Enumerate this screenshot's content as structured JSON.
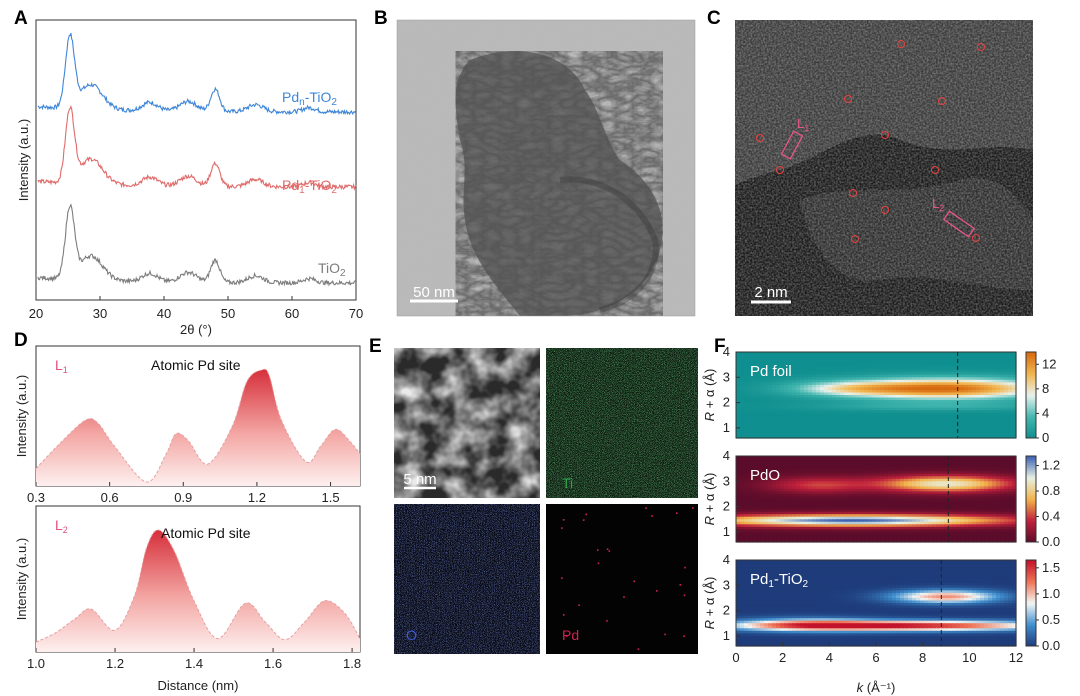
{
  "panels": {
    "a": {
      "label": "A"
    },
    "b": {
      "label": "B",
      "scale_bar": "50 nm"
    },
    "c": {
      "label": "C",
      "scale_bar": "2 nm",
      "lines": [
        "L",
        "L"
      ],
      "line_subs": [
        "1",
        "2"
      ]
    },
    "d": {
      "label": "D"
    },
    "e": {
      "label": "E",
      "scale_bar": "5 nm",
      "maps": [
        "Ti",
        "O",
        "Pd"
      ],
      "map_colors": [
        "#2fa84f",
        "#3b5bd6",
        "#d1224f"
      ]
    },
    "f": {
      "label": "F"
    }
  },
  "chart_data": [
    {
      "type": "line",
      "panel": "A",
      "xlabel": "2θ (°)",
      "ylabel": "Intensity (a.u.)",
      "xlim": [
        20,
        70
      ],
      "xticks": [
        20,
        30,
        40,
        50,
        60,
        70
      ],
      "peaks_2theta": [
        25.3,
        28.5,
        37.8,
        43.8,
        48.0,
        54.5,
        62.7
      ],
      "series": [
        {
          "name": "Pd",
          "sub": "n",
          "tail": "-TiO",
          "tail_sub": "2",
          "color": "#3f86d8"
        },
        {
          "name": "Pd",
          "sub": "1",
          "tail": "-TiO",
          "tail_sub": "2",
          "color": "#e06b6b"
        },
        {
          "name": "TiO",
          "sub": "",
          "tail": "",
          "tail_sub": "2",
          "color": "#7d7d7d"
        }
      ]
    },
    {
      "type": "area",
      "panel": "D-top",
      "label": "L",
      "label_sub": "1",
      "annotation": "Atomic Pd site",
      "ylabel": "Intensity (a.u.)",
      "xlim": [
        0.3,
        1.62
      ],
      "xticks": [
        0.3,
        0.6,
        0.9,
        1.2,
        1.5
      ],
      "x": [
        0.3,
        0.4,
        0.5,
        0.55,
        0.62,
        0.75,
        0.83,
        0.87,
        0.92,
        1.0,
        1.1,
        1.16,
        1.22,
        1.25,
        1.3,
        1.4,
        1.46,
        1.52,
        1.58,
        1.62
      ],
      "y": [
        0.12,
        0.35,
        0.55,
        0.53,
        0.32,
        0.0,
        0.25,
        0.43,
        0.37,
        0.16,
        0.5,
        0.9,
        1.0,
        0.95,
        0.55,
        0.18,
        0.32,
        0.47,
        0.36,
        0.25
      ]
    },
    {
      "type": "area",
      "panel": "D-bottom",
      "label": "L",
      "label_sub": "2",
      "annotation": "Atomic Pd site",
      "ylabel": "Intensity (a.u.)",
      "xlabel": "Distance (nm)",
      "xlim": [
        1.0,
        1.82
      ],
      "xticks": [
        1.0,
        1.2,
        1.4,
        1.6,
        1.8
      ],
      "x": [
        1.0,
        1.05,
        1.1,
        1.14,
        1.2,
        1.25,
        1.28,
        1.31,
        1.35,
        1.4,
        1.46,
        1.53,
        1.58,
        1.63,
        1.68,
        1.73,
        1.78,
        1.82
      ],
      "y": [
        0.05,
        0.13,
        0.25,
        0.33,
        0.15,
        0.45,
        0.85,
        1.0,
        0.82,
        0.4,
        0.08,
        0.38,
        0.22,
        0.07,
        0.22,
        0.4,
        0.3,
        0.08
      ]
    },
    {
      "type": "heatmap",
      "panel": "F",
      "xlabel": "k (Å⁻¹)",
      "xlabel_italic": "k",
      "xlabel_rest": " (Å⁻¹)",
      "ylabel": "R + α (Å)",
      "xlim": [
        0,
        12
      ],
      "xticks": [
        0,
        2,
        4,
        6,
        8,
        10,
        12
      ],
      "ylim": [
        0.6,
        4
      ],
      "yticks": [
        1,
        2,
        3,
        4
      ],
      "maps": [
        {
          "name": "Pd foil",
          "name_main": "Pd foil",
          "name_sub": "",
          "name_tail": "",
          "colorbar_ticks": [
            "0",
            "4",
            "8",
            "12"
          ],
          "vmax": 14,
          "colormap": [
            "#0f8f8f",
            "#44b7b0",
            "#e7f2ee",
            "#f2b64e",
            "#d76a10"
          ],
          "dash_k": 9.5,
          "bg": "#0f8f8f",
          "features": [
            {
              "k": 9.0,
              "r": 2.55,
              "sk": 3.0,
              "sr": 0.28,
              "a": 1.0
            },
            {
              "k": 4.8,
              "r": 2.55,
              "sk": 1.8,
              "sr": 0.2,
              "a": 0.35
            },
            {
              "k": 8.5,
              "r": 1.85,
              "sk": 3.5,
              "sr": 0.12,
              "a": 0.18
            }
          ]
        },
        {
          "name": "PdO",
          "name_main": "PdO",
          "name_sub": "",
          "name_tail": "",
          "colorbar_ticks": [
            "0.0",
            "0.4",
            "0.8",
            "1.2"
          ],
          "vmax": 1.35,
          "colormap": [
            "#5b0c2a",
            "#c0203c",
            "#f3b34a",
            "#e6f1e5",
            "#3c61b2"
          ],
          "dash_k": 9.1,
          "bg": "#5b0c2a",
          "features": [
            {
              "k": 5.0,
              "r": 1.45,
              "sk": 4.5,
              "sr": 0.16,
              "a": 1.0
            },
            {
              "k": 9.0,
              "r": 2.9,
              "sk": 2.0,
              "sr": 0.22,
              "a": 0.72
            },
            {
              "k": 3.5,
              "r": 2.85,
              "sk": 1.5,
              "sr": 0.22,
              "a": 0.3
            }
          ]
        },
        {
          "name": "Pd1-TiO2",
          "name_main": "Pd",
          "name_sub": "1",
          "name_tail": "-TiO",
          "name_tail_sub": "2",
          "colorbar_ticks": [
            "0.0",
            "0.5",
            "1.0",
            "1.5"
          ],
          "vmax": 1.65,
          "colormap": [
            "#1e3b7a",
            "#3f8fcf",
            "#f2f6f4",
            "#ef7456",
            "#c3122b"
          ],
          "dash_k": 8.8,
          "bg": "#1e3b7a",
          "features": [
            {
              "k": 7.0,
              "r": 1.4,
              "sk": 4.5,
              "sr": 0.14,
              "a": 1.0
            },
            {
              "k": 9.0,
              "r": 2.55,
              "sk": 1.6,
              "sr": 0.18,
              "a": 0.7
            },
            {
              "k": 3.0,
              "r": 1.45,
              "sk": 2.0,
              "sr": 0.18,
              "a": 0.4
            }
          ]
        }
      ]
    }
  ]
}
